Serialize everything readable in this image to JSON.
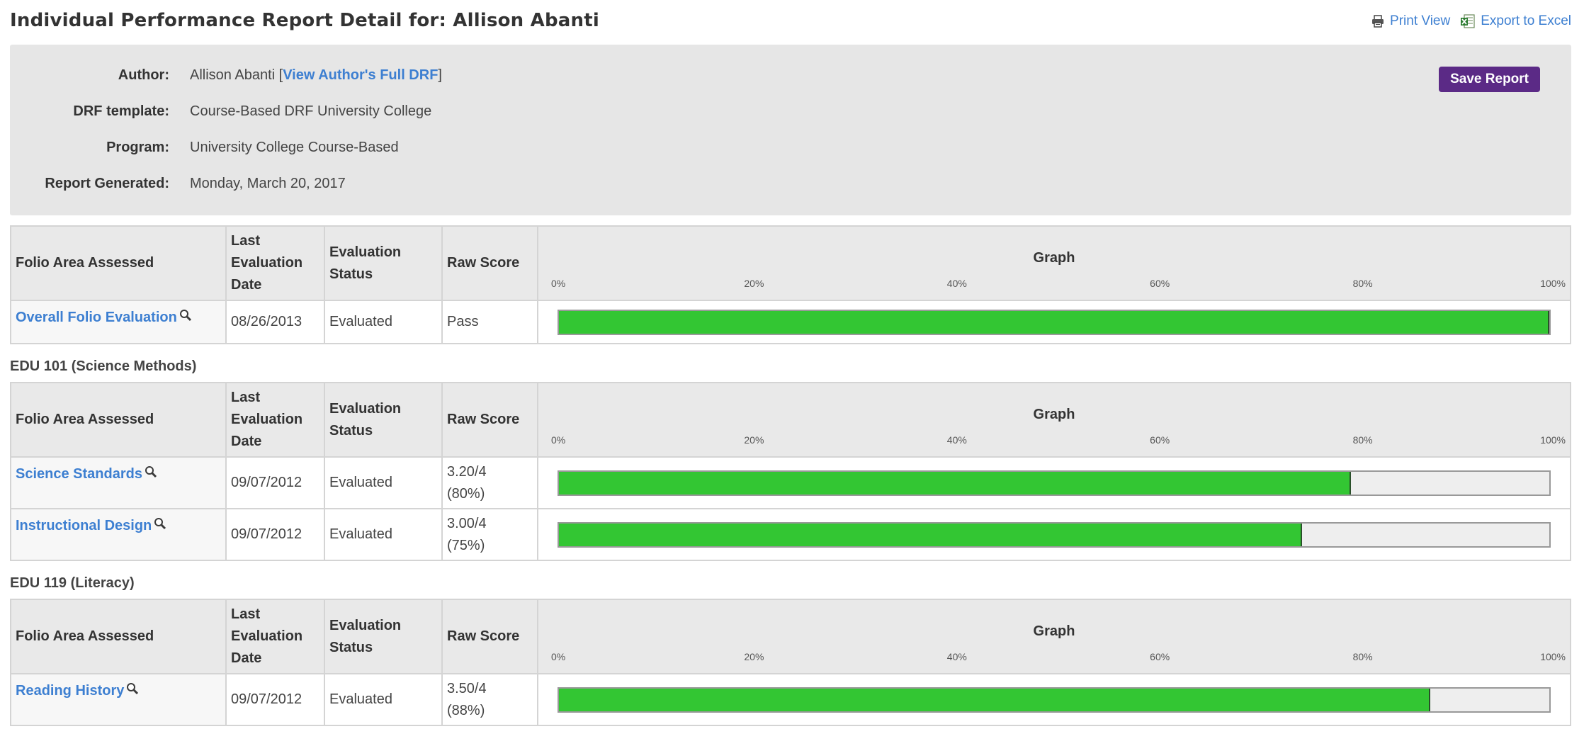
{
  "header": {
    "title": "Individual Performance Report Detail for: Allison Abanti",
    "print_label": "Print View",
    "export_label": "Export to Excel"
  },
  "info": {
    "author_label": "Author:",
    "author_name": "Allison Abanti",
    "author_link": "View Author's Full DRF",
    "template_label": "DRF template:",
    "template_value": "Course-Based DRF University College",
    "program_label": "Program:",
    "program_value": "University College Course-Based",
    "generated_label": "Report Generated:",
    "generated_value": "Monday, March 20, 2017",
    "save_label": "Save Report"
  },
  "columns": {
    "area": "Folio Area Assessed",
    "date": "Last Evaluation Date",
    "status": "Evaluation Status",
    "raw": "Raw Score",
    "graph": "Graph",
    "ticks": [
      "0%",
      "20%",
      "40%",
      "60%",
      "80%",
      "100%"
    ]
  },
  "colors": {
    "bar_fill": "#33c633",
    "link": "#3d7fd1",
    "save_button": "#5b2a86"
  },
  "sections": [
    {
      "title": "",
      "rows": [
        {
          "area": "Overall Folio Evaluation",
          "date": "08/26/2013",
          "status": "Evaluated",
          "raw": "Pass",
          "raw_sub": "",
          "percent": 100
        }
      ]
    },
    {
      "title": "EDU 101 (Science Methods)",
      "rows": [
        {
          "area": "Science Standards",
          "date": "09/07/2012",
          "status": "Evaluated",
          "raw": "3.20/4",
          "raw_sub": "(80%)",
          "percent": 80
        },
        {
          "area": "Instructional Design",
          "date": "09/07/2012",
          "status": "Evaluated",
          "raw": "3.00/4",
          "raw_sub": "(75%)",
          "percent": 75
        }
      ]
    },
    {
      "title": "EDU 119 (Literacy)",
      "rows": [
        {
          "area": "Reading History",
          "date": "09/07/2012",
          "status": "Evaluated",
          "raw": "3.50/4",
          "raw_sub": "(88%)",
          "percent": 88
        }
      ]
    }
  ]
}
